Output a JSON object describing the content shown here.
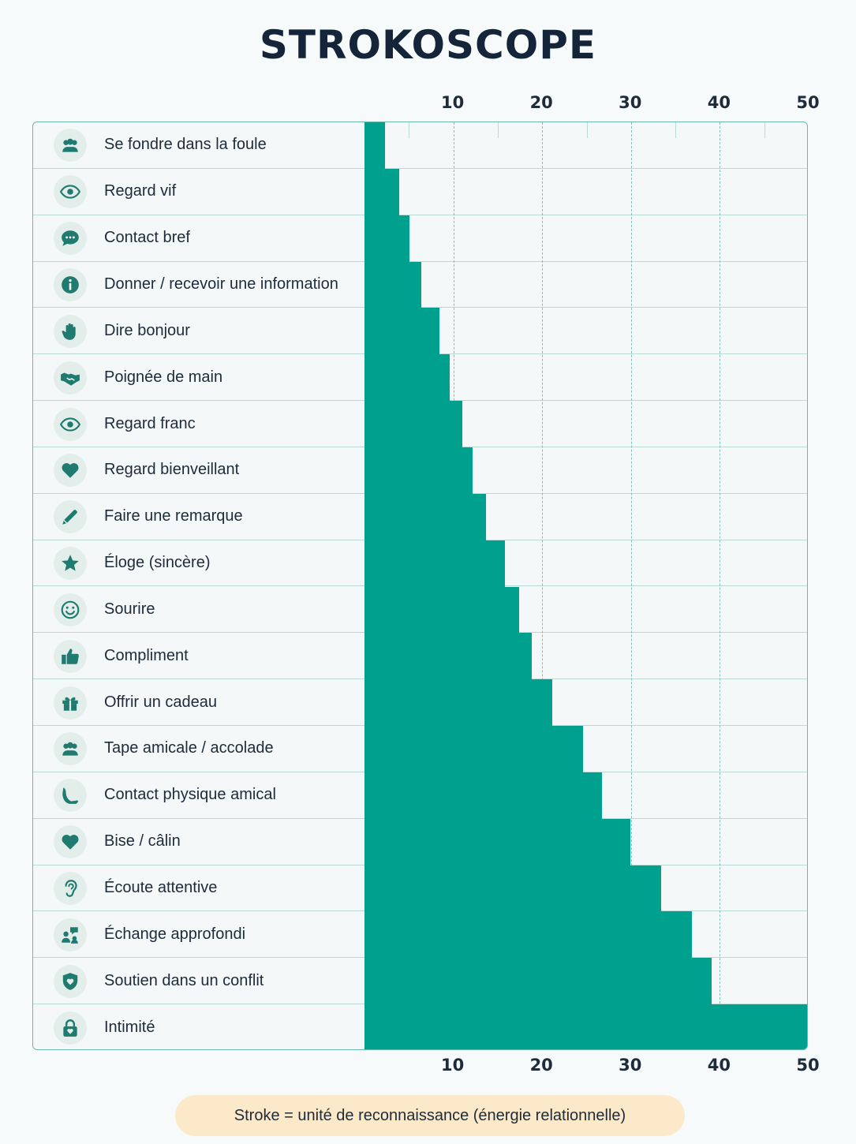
{
  "title": "STROKOSCOPE",
  "legend_note": "Stroke = unité de reconnaissance (énergie relationnelle)",
  "colors": {
    "bar": "#00a08f",
    "grid": "#7fc1b8",
    "icon_bg": "#e3eeeb",
    "icon": "#1f7a70",
    "legend_bg": "#fbe9c9"
  },
  "chart_data": {
    "type": "bar",
    "orientation": "horizontal",
    "xlim": [
      0,
      50
    ],
    "x_ticks": [
      10,
      20,
      30,
      40,
      50
    ],
    "grid": true,
    "categories": [
      "Se fondre dans la foule",
      "Regard vif",
      "Contact bref",
      "Donner / recevoir une information",
      "Dire bonjour",
      "Poignée de main",
      "Regard franc",
      "Regard bienveillant",
      "Faire une remarque",
      "Éloge (sincère)",
      "Sourire",
      "Compliment",
      "Offrir un cadeau",
      "Tape amicale / accolade",
      "Contact physique amical",
      "Bise / câlin",
      "Écoute attentive",
      "Échange approfondi",
      "Soutien dans un conflit",
      "Intimité"
    ],
    "values": [
      2.3,
      3.9,
      5.1,
      6.4,
      8.4,
      9.6,
      11.0,
      12.2,
      13.7,
      15.8,
      17.4,
      18.8,
      21.1,
      24.6,
      26.7,
      29.9,
      33.4,
      36.9,
      39.1,
      50.0
    ],
    "icons": [
      "group-icon",
      "eye-icon",
      "chat-bubble-icon",
      "info-icon",
      "hand-wave-icon",
      "handshake-icon",
      "eye-icon",
      "heart-icon",
      "pencil-icon",
      "star-icon",
      "smile-icon",
      "thumbs-up-icon",
      "gift-icon",
      "group-icon",
      "arm-touch-icon",
      "heart-icon",
      "ear-icon",
      "conversation-icon",
      "shield-heart-icon",
      "lock-heart-icon"
    ]
  }
}
